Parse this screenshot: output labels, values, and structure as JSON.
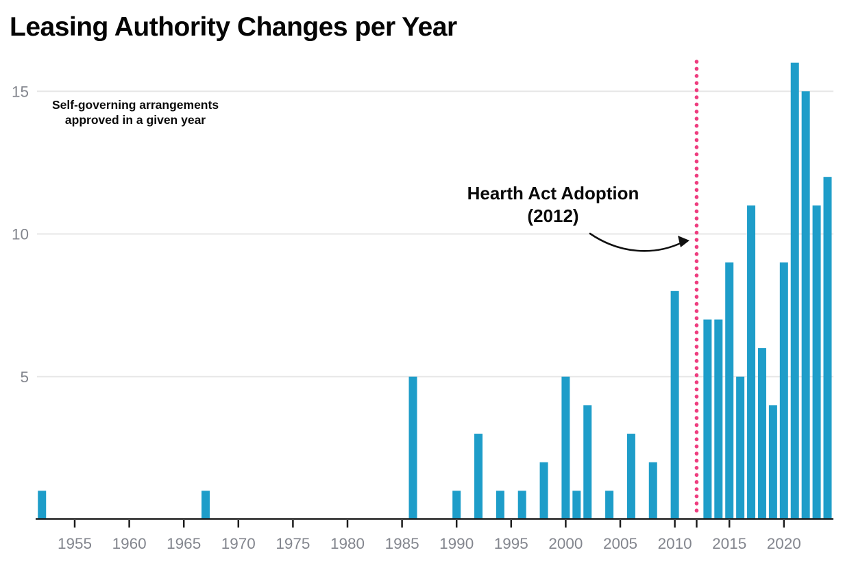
{
  "page": {
    "background": "#ffffff"
  },
  "chart_data": {
    "type": "bar",
    "title": "Leasing Authority Changes per Year",
    "subtitle_lines": [
      "Self-governing arrangements",
      "approved in a given year"
    ],
    "series_label": "Self-governing arrangements approved in a given year",
    "annotation": {
      "lines": [
        "Hearth Act Adoption",
        "(2012)"
      ],
      "points_to_year": 2012
    },
    "x": {
      "tick_years": [
        1955,
        1960,
        1965,
        1970,
        1975,
        1980,
        1985,
        1990,
        1995,
        2000,
        2005,
        2010,
        2015,
        2020
      ],
      "unlabeled_tick_year": 2012,
      "range": [
        1951,
        2025
      ]
    },
    "y": {
      "gridline_values": [
        5,
        10,
        15
      ],
      "range": [
        0,
        16.1
      ],
      "grid_on": true
    },
    "vline": {
      "year": 2012,
      "style": "dotted"
    },
    "bars": [
      {
        "year": 1952,
        "value": 1
      },
      {
        "year": 1967,
        "value": 1
      },
      {
        "year": 1986,
        "value": 5
      },
      {
        "year": 1990,
        "value": 1
      },
      {
        "year": 1992,
        "value": 3
      },
      {
        "year": 1994,
        "value": 1
      },
      {
        "year": 1996,
        "value": 1
      },
      {
        "year": 1998,
        "value": 2
      },
      {
        "year": 2000,
        "value": 5
      },
      {
        "year": 2001,
        "value": 1
      },
      {
        "year": 2002,
        "value": 4
      },
      {
        "year": 2004,
        "value": 1
      },
      {
        "year": 2006,
        "value": 3
      },
      {
        "year": 2008,
        "value": 2
      },
      {
        "year": 2010,
        "value": 8
      },
      {
        "year": 2013,
        "value": 7
      },
      {
        "year": 2014,
        "value": 7
      },
      {
        "year": 2015,
        "value": 9
      },
      {
        "year": 2016,
        "value": 5
      },
      {
        "year": 2017,
        "value": 11
      },
      {
        "year": 2018,
        "value": 6
      },
      {
        "year": 2019,
        "value": 4
      },
      {
        "year": 2020,
        "value": 9
      },
      {
        "year": 2021,
        "value": 16
      },
      {
        "year": 2022,
        "value": 15
      },
      {
        "year": 2023,
        "value": 11
      },
      {
        "year": 2024,
        "value": 12
      }
    ],
    "colors": {
      "bar": "#1e9dc9",
      "vline": "#ee3d7f",
      "grid": "#e7e7e7",
      "axis": "#1c1c1c",
      "tick_label": "#83868e",
      "annotation_text": "#0a0a0a",
      "arrow": "#111111"
    }
  }
}
